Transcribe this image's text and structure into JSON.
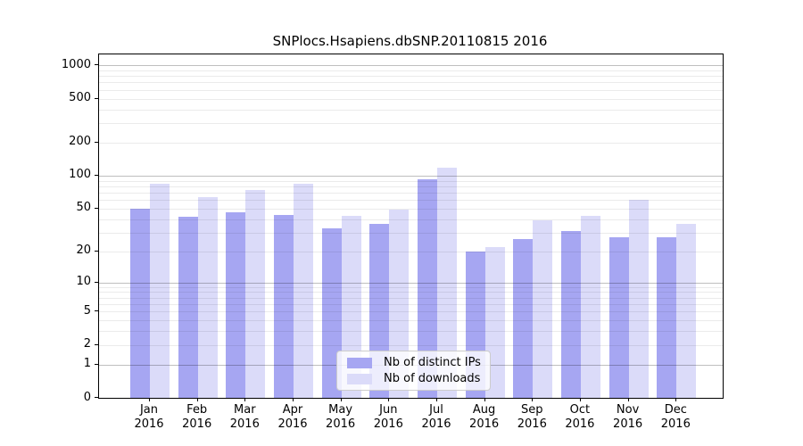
{
  "title": "SNPlocs.Hsapiens.dbSNP.20110815 2016",
  "chart_data": {
    "type": "bar",
    "title": "SNPlocs.Hsapiens.dbSNP.20110815 2016",
    "scale": "log1p",
    "categories": [
      "Jan",
      "Feb",
      "Mar",
      "Apr",
      "May",
      "Jun",
      "Jul",
      "Aug",
      "Sep",
      "Oct",
      "Nov",
      "Dec"
    ],
    "category_year": "2016",
    "series": [
      {
        "name": "Nb of distinct IPs",
        "color": "#a6a6f2",
        "values": [
          50,
          42,
          46,
          44,
          33,
          36,
          92,
          20,
          26,
          31,
          27,
          27
        ]
      },
      {
        "name": "Nb of downloads",
        "color": "#dbdbf9",
        "values": [
          84,
          64,
          74,
          84,
          43,
          49,
          118,
          22,
          39,
          43,
          60,
          36
        ]
      }
    ],
    "xlabel": "",
    "ylabel": "",
    "ylim": [
      0,
      1253
    ],
    "yticks": [
      0,
      1,
      2,
      5,
      10,
      20,
      50,
      100,
      200,
      500,
      1000
    ],
    "y_major_gridlines": [
      1,
      10,
      100,
      1000
    ],
    "y_minor_gridlines": [
      2,
      3,
      4,
      5,
      6,
      7,
      8,
      9,
      20,
      30,
      40,
      50,
      60,
      70,
      80,
      90,
      200,
      300,
      400,
      500,
      600,
      700,
      800,
      900
    ],
    "grid": true,
    "legend_position": "lower-center",
    "colors": {
      "axis": "#000000",
      "major_grid": "rgba(0,0,0,0.25)",
      "minor_grid": "rgba(0,0,0,0.08)",
      "background": "#ffffff"
    }
  }
}
